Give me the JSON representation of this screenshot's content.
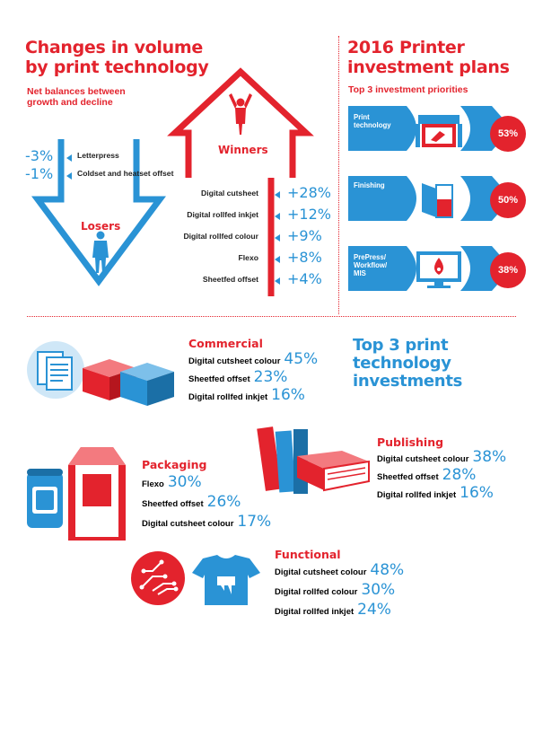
{
  "volume": {
    "title_line1": "Changes in volume",
    "title_line2": "by print technology",
    "subtitle_line1": "Net balances between",
    "subtitle_line2": "growth and decline",
    "losers_label": "Losers",
    "winners_label": "Winners"
  },
  "investment": {
    "title_line1": "2016 Printer",
    "title_line2": "investment plans",
    "subtitle": "Top 3 investment priorities"
  },
  "top3": {
    "title_line1": "Top 3 print",
    "title_line2": "technology",
    "title_line3": "investments"
  },
  "colors": {
    "red": "#e3232d",
    "blue": "#2a93d5",
    "light_blue": "#cfe7f7",
    "dark": "#222222"
  },
  "chart_data": [
    {
      "type": "bar",
      "group": "Losers",
      "categories": [
        "Letterpress",
        "Coldset and heatset offset"
      ],
      "values": [
        -3,
        -1
      ],
      "value_labels": [
        "-3%",
        "-1%"
      ]
    },
    {
      "type": "bar",
      "group": "Winners",
      "categories": [
        "Digital cutsheet",
        "Digital rollfed inkjet",
        "Digital rollfed colour",
        "Flexo",
        "Sheetfed offset"
      ],
      "values": [
        28,
        12,
        9,
        8,
        4
      ],
      "value_labels": [
        "+28%",
        "+12%",
        "+9%",
        "+8%",
        "+4%"
      ]
    },
    {
      "type": "bar",
      "group": "Top 3 investment priorities",
      "categories": [
        "Print technology",
        "Finishing",
        "PrePress/ Workflow/ MIS"
      ],
      "values": [
        53,
        50,
        38
      ],
      "value_labels": [
        "53%",
        "50%",
        "38%"
      ]
    },
    {
      "type": "table",
      "group": "Commercial",
      "categories": [
        "Digital cutsheet colour",
        "Sheetfed offset",
        "Digital rollfed inkjet"
      ],
      "values": [
        45,
        23,
        16
      ],
      "value_labels": [
        "45%",
        "23%",
        "16%"
      ]
    },
    {
      "type": "table",
      "group": "Publishing",
      "categories": [
        "Digital cutsheet colour",
        "Sheetfed offset",
        "Digital rollfed inkjet"
      ],
      "values": [
        38,
        28,
        16
      ],
      "value_labels": [
        "38%",
        "28%",
        "16%"
      ]
    },
    {
      "type": "table",
      "group": "Packaging",
      "categories": [
        "Flexo",
        "Sheetfed offset",
        "Digital cutsheet colour"
      ],
      "values": [
        30,
        26,
        17
      ],
      "value_labels": [
        "30%",
        "26%",
        "17%"
      ]
    },
    {
      "type": "table",
      "group": "Functional",
      "categories": [
        "Digital cutsheet colour",
        "Digital rollfed colour",
        "Digital rollfed inkjet"
      ],
      "values": [
        48,
        30,
        24
      ],
      "value_labels": [
        "48%",
        "30%",
        "24%"
      ]
    }
  ]
}
